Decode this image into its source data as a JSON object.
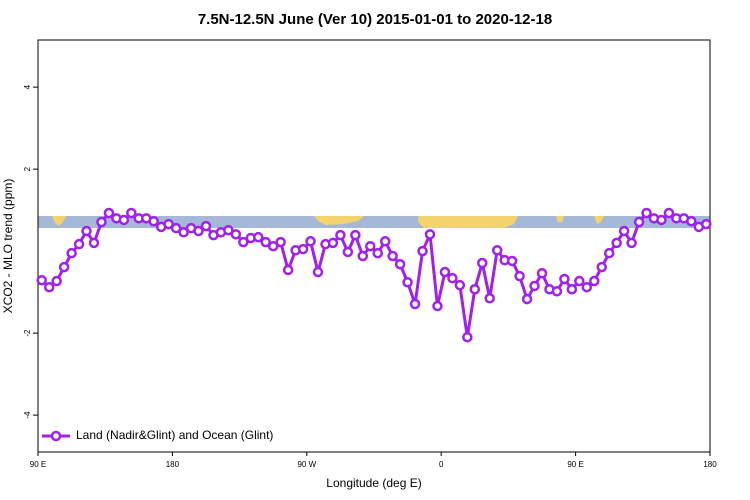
{
  "chart_data": {
    "type": "line",
    "title": "7.5N-12.5N June (Ver 10)   2015-01-01 to 2020-12-18",
    "x_label": "Longitude (deg E)",
    "y_label": "XCO2 - MLO trend (ppm)",
    "x": [
      92.5,
      97.5,
      102.5,
      107.5,
      112.5,
      117.5,
      122.5,
      127.5,
      132.5,
      137.5,
      142.5,
      147.5,
      152.5,
      157.5,
      162.5,
      167.5,
      172.5,
      177.5,
      182.5,
      187.5,
      192.5,
      197.5,
      202.5,
      207.5,
      212.5,
      217.5,
      222.5,
      227.5,
      232.5,
      237.5,
      242.5,
      247.5,
      252.5,
      257.5,
      262.5,
      267.5,
      272.5,
      277.5,
      282.5,
      287.5,
      292.5,
      297.5,
      302.5,
      307.5,
      312.5,
      317.5,
      322.5,
      327.5,
      332.5,
      337.5,
      342.5,
      347.5,
      352.5,
      357.5,
      362.5,
      367.5,
      372.5,
      377.5,
      382.5,
      387.5,
      392.5,
      397.5,
      402.5,
      407.5,
      412.5,
      417.5,
      422.5,
      427.5,
      432.5,
      437.5,
      442.5,
      447.5,
      452.5,
      457.5,
      462.5,
      467.5,
      472.5,
      477.5,
      482.5,
      487.5,
      492.5,
      497.5,
      502.5,
      507.5,
      512.5,
      517.5,
      522.5,
      527.5,
      532.5,
      537.5
    ],
    "series": [
      {
        "name": "Land (Nadir&Glint) and Ocean (Glint)",
        "color": "#a020f0",
        "values": [
          -0.71,
          -0.88,
          -0.73,
          -0.39,
          -0.05,
          0.17,
          0.49,
          0.2,
          0.71,
          0.93,
          0.8,
          0.76,
          0.93,
          0.8,
          0.8,
          0.73,
          0.59,
          0.66,
          0.56,
          0.46,
          0.56,
          0.49,
          0.61,
          0.39,
          0.46,
          0.51,
          0.41,
          0.22,
          0.32,
          0.34,
          0.22,
          0.12,
          0.22,
          -0.46,
          0.02,
          0.05,
          0.24,
          -0.51,
          0.17,
          0.2,
          0.39,
          -0.02,
          0.39,
          -0.12,
          0.12,
          -0.05,
          0.24,
          -0.12,
          -0.32,
          -0.76,
          -1.29,
          0,
          0.41,
          -1.34,
          -0.51,
          -0.66,
          -0.83,
          -2.1,
          -0.93,
          -0.29,
          -1.15,
          0.02,
          -0.22,
          -0.24,
          -0.61,
          -1.17,
          -0.85,
          -0.54,
          -0.93,
          -0.98,
          -0.68,
          -0.93,
          -0.73,
          -0.88,
          -0.73,
          -0.39,
          -0.05,
          0.2,
          0.49,
          0.2,
          0.71,
          0.93,
          0.8,
          0.76,
          0.93,
          0.8,
          0.8,
          0.73,
          0.59,
          0.66
        ]
      }
    ],
    "xlim": [
      90,
      540
    ],
    "xticks": [
      {
        "value": 90,
        "label": "90 E"
      },
      180,
      {
        "value": 270,
        "label": "90 W"
      },
      {
        "value": 360,
        "label": "0"
      },
      {
        "value": 450,
        "label": "90 E"
      },
      {
        "value": 540,
        "label": "180"
      }
    ],
    "ylim": [
      -4.9,
      5.15
    ],
    "yticks": [
      -4,
      -2,
      2,
      4
    ],
    "legend": "bottom-left"
  }
}
